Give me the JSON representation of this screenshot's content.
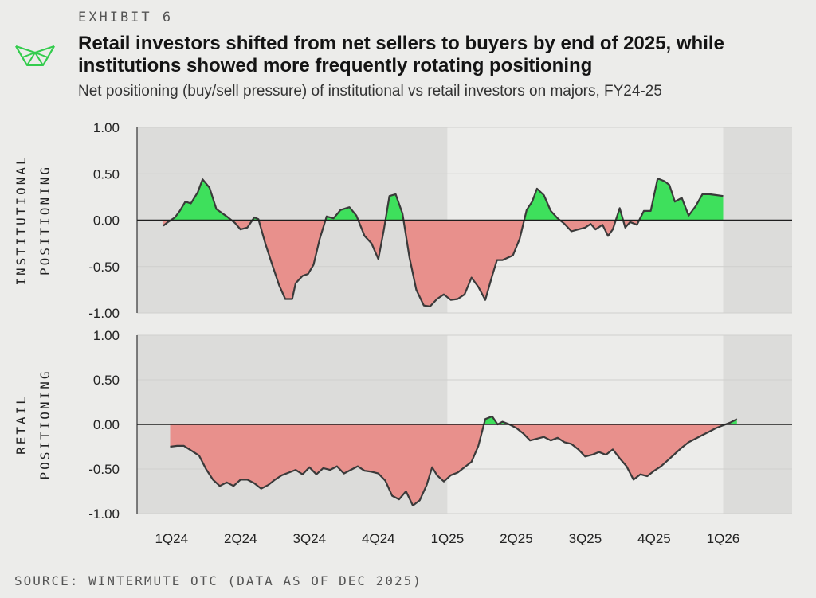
{
  "header": {
    "exhibit": "EXHIBIT 6",
    "title": "Retail investors shifted from net sellers to buyers by end of 2025, while institutions showed more frequently rotating positioning",
    "subtitle": "Net positioning (buy/sell pressure) of institutional vs retail investors on majors, FY24-25",
    "source": "SOURCE: WINTERMUTE OTC (DATA AS OF DEC 2025)"
  },
  "colors": {
    "positive": "#3ee05c",
    "negative": "#e8908c",
    "line": "#3a3a3a",
    "logo": "#33cc4d",
    "shaded_band": "#dcdcda",
    "background": "#ececea"
  },
  "chart_data": [
    {
      "type": "area",
      "title": "Institutional",
      "ylabel": [
        "INSTITUTIONAL",
        "POSITIONING"
      ],
      "ylim": [
        -1.0,
        1.0
      ],
      "yticks": [
        "1.00",
        "0.50",
        "0.00",
        "-0.50",
        "-1.00"
      ],
      "xlim": [
        0.0,
        9.5
      ],
      "shaded_ranges": [
        [
          0.0,
          4.5
        ],
        [
          8.5,
          9.5
        ]
      ],
      "baseline": 0,
      "categories": [
        "1Q24",
        "2Q24",
        "3Q24",
        "4Q24",
        "1Q25",
        "2Q25",
        "3Q25",
        "4Q25",
        "1Q26"
      ],
      "category_positions": [
        0.5,
        1.5,
        2.5,
        3.5,
        4.5,
        5.5,
        6.5,
        7.5,
        8.5
      ],
      "x": [
        0.38,
        0.45,
        0.55,
        0.62,
        0.7,
        0.78,
        0.88,
        0.95,
        1.05,
        1.15,
        1.3,
        1.42,
        1.5,
        1.6,
        1.7,
        1.76,
        1.86,
        1.96,
        2.06,
        2.15,
        2.25,
        2.3,
        2.4,
        2.48,
        2.56,
        2.65,
        2.75,
        2.85,
        2.95,
        3.08,
        3.18,
        3.3,
        3.4,
        3.5,
        3.58,
        3.66,
        3.75,
        3.85,
        3.95,
        4.05,
        4.16,
        4.25,
        4.35,
        4.45,
        4.55,
        4.65,
        4.75,
        4.85,
        4.95,
        5.05,
        5.15,
        5.22,
        5.3,
        5.45,
        5.55,
        5.65,
        5.73,
        5.8,
        5.9,
        6.0,
        6.1,
        6.2,
        6.3,
        6.4,
        6.5,
        6.58,
        6.65,
        6.75,
        6.83,
        6.9,
        7.0,
        7.08,
        7.15,
        7.25,
        7.35,
        7.45,
        7.55,
        7.65,
        7.72,
        7.8,
        7.9,
        8.0,
        8.1,
        8.2,
        8.3,
        8.4,
        8.5
      ],
      "y": [
        -0.06,
        -0.02,
        0.03,
        0.1,
        0.2,
        0.18,
        0.3,
        0.44,
        0.35,
        0.12,
        0.04,
        -0.03,
        -0.1,
        -0.08,
        0.03,
        0.01,
        -0.25,
        -0.48,
        -0.7,
        -0.85,
        -0.85,
        -0.68,
        -0.6,
        -0.58,
        -0.48,
        -0.2,
        0.04,
        0.02,
        0.11,
        0.14,
        0.05,
        -0.17,
        -0.25,
        -0.42,
        -0.1,
        0.26,
        0.28,
        0.07,
        -0.4,
        -0.75,
        -0.92,
        -0.93,
        -0.85,
        -0.8,
        -0.86,
        -0.85,
        -0.8,
        -0.62,
        -0.72,
        -0.86,
        -0.6,
        -0.43,
        -0.43,
        -0.38,
        -0.2,
        0.11,
        0.2,
        0.34,
        0.27,
        0.1,
        0.02,
        -0.04,
        -0.12,
        -0.1,
        -0.08,
        -0.04,
        -0.1,
        -0.05,
        -0.17,
        -0.1,
        0.13,
        -0.08,
        -0.02,
        -0.05,
        0.1,
        0.1,
        0.45,
        0.42,
        0.38,
        0.2,
        0.24,
        0.05,
        0.15,
        0.28,
        0.28,
        0.27,
        0.26
      ]
    },
    {
      "type": "area",
      "title": "Retail",
      "ylabel": [
        "RETAIL",
        "POSITIONING"
      ],
      "ylim": [
        -1.0,
        1.0
      ],
      "yticks": [
        "1.00",
        "0.50",
        "0.00",
        "-0.50",
        "-1.00"
      ],
      "xlim": [
        0.0,
        9.5
      ],
      "shaded_ranges": [
        [
          0.0,
          4.5
        ],
        [
          8.5,
          9.5
        ]
      ],
      "baseline": 0,
      "categories": [
        "1Q24",
        "2Q24",
        "3Q24",
        "4Q24",
        "1Q25",
        "2Q25",
        "3Q25",
        "4Q25",
        "1Q26"
      ],
      "category_positions": [
        0.5,
        1.5,
        2.5,
        3.5,
        4.5,
        5.5,
        6.5,
        7.5,
        8.5
      ],
      "x": [
        0.48,
        0.58,
        0.68,
        0.8,
        0.9,
        1.0,
        1.1,
        1.2,
        1.3,
        1.4,
        1.5,
        1.6,
        1.7,
        1.8,
        1.9,
        2.0,
        2.1,
        2.2,
        2.3,
        2.4,
        2.5,
        2.6,
        2.7,
        2.8,
        2.9,
        3.0,
        3.1,
        3.2,
        3.3,
        3.4,
        3.5,
        3.6,
        3.7,
        3.8,
        3.9,
        4.0,
        4.1,
        4.2,
        4.28,
        4.35,
        4.45,
        4.55,
        4.65,
        4.75,
        4.85,
        4.95,
        5.05,
        5.15,
        5.23,
        5.3,
        5.4,
        5.5,
        5.6,
        5.7,
        5.8,
        5.9,
        6.0,
        6.1,
        6.2,
        6.3,
        6.4,
        6.5,
        6.6,
        6.7,
        6.8,
        6.9,
        7.0,
        7.1,
        7.2,
        7.3,
        7.4,
        7.5,
        7.6,
        7.7,
        7.8,
        7.9,
        8.0,
        8.1,
        8.2,
        8.3,
        8.4,
        8.5,
        8.6,
        8.7
      ],
      "y": [
        -0.25,
        -0.24,
        -0.24,
        -0.3,
        -0.35,
        -0.5,
        -0.62,
        -0.69,
        -0.65,
        -0.69,
        -0.62,
        -0.62,
        -0.66,
        -0.72,
        -0.68,
        -0.62,
        -0.57,
        -0.54,
        -0.51,
        -0.56,
        -0.48,
        -0.56,
        -0.49,
        -0.51,
        -0.47,
        -0.55,
        -0.51,
        -0.47,
        -0.52,
        -0.53,
        -0.55,
        -0.63,
        -0.8,
        -0.84,
        -0.75,
        -0.91,
        -0.85,
        -0.68,
        -0.48,
        -0.57,
        -0.64,
        -0.57,
        -0.54,
        -0.48,
        -0.42,
        -0.24,
        0.06,
        0.09,
        0.0,
        0.03,
        0.0,
        -0.04,
        -0.1,
        -0.18,
        -0.16,
        -0.14,
        -0.18,
        -0.15,
        -0.2,
        -0.22,
        -0.28,
        -0.36,
        -0.34,
        -0.31,
        -0.34,
        -0.28,
        -0.38,
        -0.47,
        -0.62,
        -0.56,
        -0.58,
        -0.52,
        -0.47,
        -0.4,
        -0.33,
        -0.26,
        -0.2,
        -0.16,
        -0.12,
        -0.08,
        -0.04,
        -0.01,
        0.02,
        0.06
      ]
    }
  ]
}
